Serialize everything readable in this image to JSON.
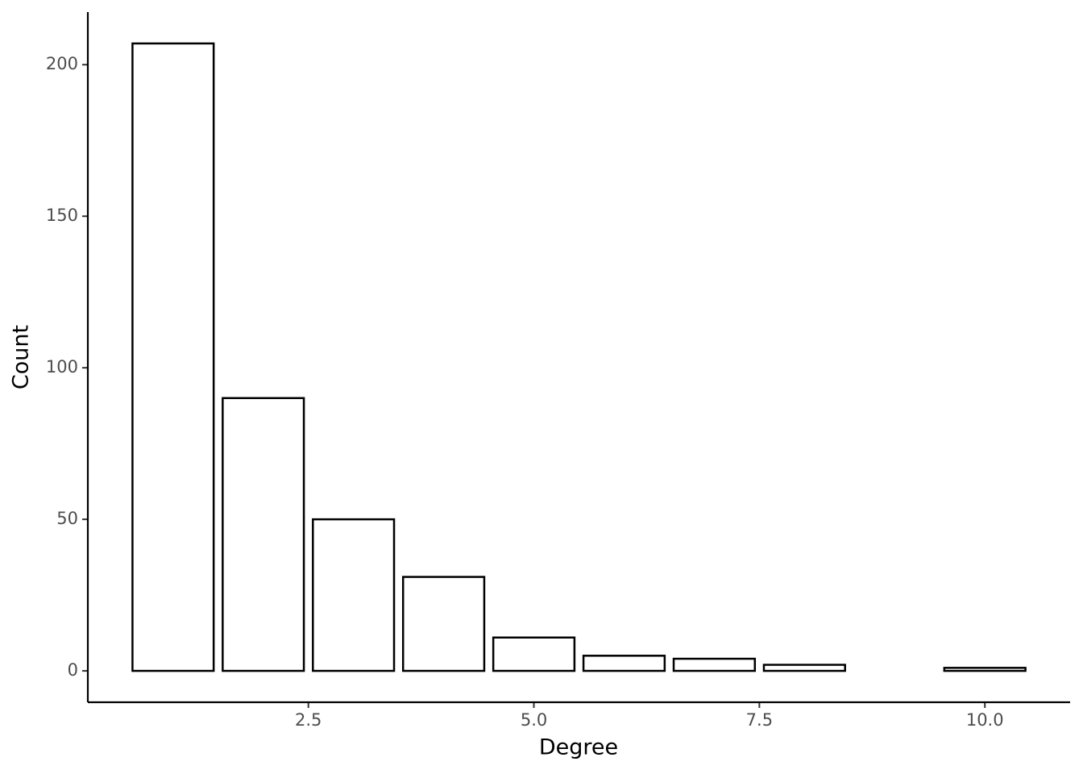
{
  "chart_data": {
    "type": "bar",
    "x": [
      1,
      2,
      3,
      4,
      5,
      6,
      7,
      8,
      10
    ],
    "values": [
      207,
      90,
      50,
      31,
      11,
      5,
      4,
      2,
      1
    ],
    "color": "#ffffff",
    "edgecolor": "#000000",
    "xlabel": "Degree",
    "ylabel": "Count",
    "xlim": [
      0.055,
      10.945
    ],
    "ylim": [
      -10.35,
      217.35
    ],
    "xticks": [
      2.5,
      {
        "value": 5,
        "label": "5.0"
      },
      7.5,
      {
        "value": 10,
        "label": "10.0"
      }
    ],
    "yticks": [
      0,
      50,
      100,
      150,
      200
    ],
    "grid": false
  }
}
